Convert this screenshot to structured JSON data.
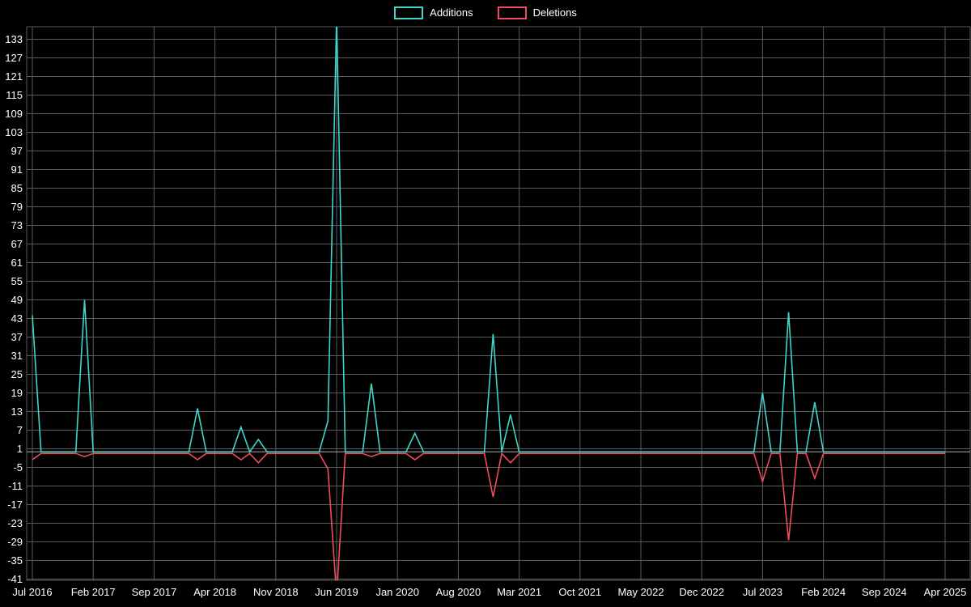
{
  "chart_data": {
    "type": "line",
    "title": "",
    "xlabel": "",
    "ylabel": "",
    "legend_position": "top-center",
    "background_color": "#000000",
    "grid": true,
    "grid_color": "#5c5c5c",
    "axis_zero_color": "#b0b0b0",
    "text_color": "#ffffff",
    "legend": [
      {
        "name": "Additions",
        "color": "#3fd6c9"
      },
      {
        "name": "Deletions",
        "color": "#f24a5e"
      }
    ],
    "x_axis": {
      "unit": "month",
      "start": "Jul 2016",
      "end": "Apr 2025",
      "total_months": 106,
      "tick_labels": [
        "Jul 2016",
        "Feb 2017",
        "Sep 2017",
        "Apr 2018",
        "Nov 2018",
        "Jun 2019",
        "Jan 2020",
        "Aug 2020",
        "Mar 2021",
        "Oct 2021",
        "May 2022",
        "Dec 2022",
        "Jul 2023",
        "Feb 2024",
        "Sep 2024",
        "Apr 2025"
      ],
      "tick_month_indices": [
        0,
        7,
        14,
        21,
        28,
        35,
        42,
        49,
        56,
        63,
        70,
        77,
        84,
        91,
        98,
        105
      ]
    },
    "y_axis": {
      "tick_values": [
        133,
        127,
        121,
        115,
        109,
        103,
        97,
        91,
        85,
        79,
        73,
        67,
        61,
        55,
        49,
        43,
        37,
        31,
        25,
        19,
        13,
        7,
        1,
        -5,
        -11,
        -17,
        -23,
        -29,
        -35,
        -41
      ],
      "tick_step": 6,
      "labeled_range": [
        -41,
        133
      ]
    },
    "baseline_value": 0,
    "series_note": "Both series are 0 for every month except the spikes listed below; the Jun 2019 spike exceeds the visible axis range in both directions.",
    "spikes": [
      {
        "month": "Jul 2016",
        "month_index": 0,
        "additions": 44,
        "deletions": -2
      },
      {
        "month": "Jan 2017",
        "month_index": 6,
        "additions": 49,
        "deletions": -1
      },
      {
        "month": "Feb 2018",
        "month_index": 19,
        "additions": 14,
        "deletions": -2
      },
      {
        "month": "Jul 2018",
        "month_index": 24,
        "additions": 8,
        "deletions": -2
      },
      {
        "month": "Sep 2018",
        "month_index": 26,
        "additions": 4,
        "deletions": -3
      },
      {
        "month": "May 2019",
        "month_index": 34,
        "additions": 10,
        "deletions": -5
      },
      {
        "month": "Jun 2019",
        "month_index": 35,
        "additions": 140,
        "deletions": -46
      },
      {
        "month": "Oct 2019",
        "month_index": 39,
        "additions": 22,
        "deletions": -1
      },
      {
        "month": "Mar 2020",
        "month_index": 44,
        "additions": 6,
        "deletions": -2
      },
      {
        "month": "Dec 2020",
        "month_index": 53,
        "additions": 38,
        "deletions": -14
      },
      {
        "month": "Feb 2021",
        "month_index": 55,
        "additions": 12,
        "deletions": -3
      },
      {
        "month": "Jul 2023",
        "month_index": 84,
        "additions": 19,
        "deletions": -9
      },
      {
        "month": "Oct 2023",
        "month_index": 87,
        "additions": 45,
        "deletions": -28
      },
      {
        "month": "Jan 2024",
        "month_index": 90,
        "additions": 16,
        "deletions": -8
      }
    ]
  }
}
